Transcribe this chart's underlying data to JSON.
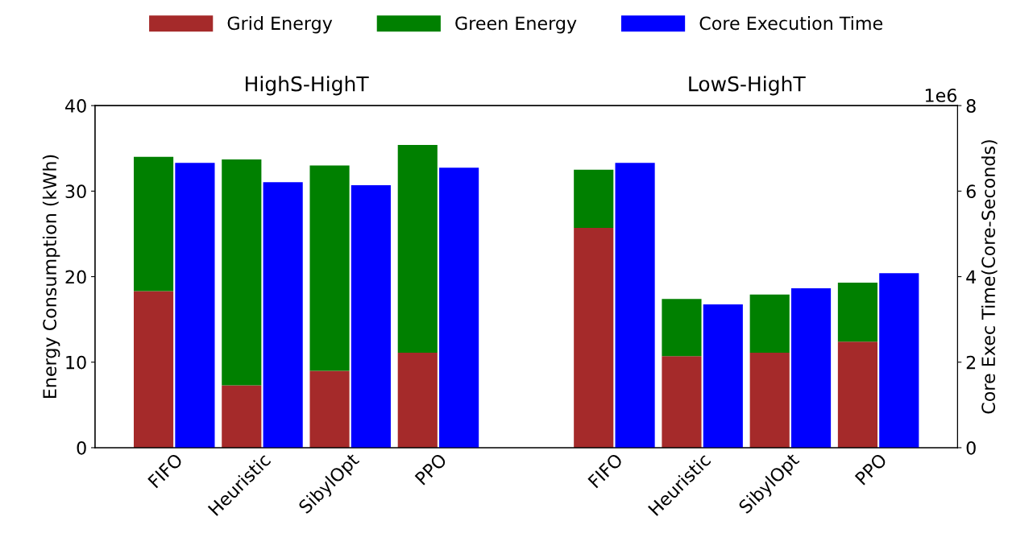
{
  "chart_data": {
    "type": "bar",
    "categories": [
      "FIFO",
      "Heuristic",
      "SibylOpt",
      "PPO",
      null,
      "FIFO",
      "Heuristic",
      "SibylOpt",
      "PPO"
    ],
    "series": [
      {
        "name": "Grid Energy",
        "color": "#a52a2a",
        "values": [
          18.3,
          7.3,
          9.0,
          11.1,
          null,
          25.7,
          10.7,
          11.1,
          12.4
        ]
      },
      {
        "name": "Green Energy",
        "color": "#008000",
        "values": [
          15.7,
          26.4,
          24.0,
          24.3,
          null,
          6.8,
          6.7,
          6.8,
          6.9
        ]
      },
      {
        "name": "Core Execution Time",
        "color": "#0000ff",
        "axis": "y2",
        "values": [
          6.66,
          6.21,
          6.14,
          6.55,
          null,
          6.66,
          3.35,
          3.73,
          4.08
        ]
      }
    ],
    "stacked": true,
    "ylabel": "Energy Consumption (kWh)",
    "y2label": "Core Exec Time(Core-Seconds)",
    "ylim": [
      0,
      40
    ],
    "yticks": [
      0,
      10,
      20,
      30,
      40
    ],
    "y2lim": [
      0,
      8
    ],
    "y2ticks": [
      0,
      2,
      4,
      6,
      8
    ],
    "annotations": [
      "HighS-HighT",
      "LowS-HighT",
      "1e6"
    ],
    "legend": "top",
    "grid": false
  }
}
